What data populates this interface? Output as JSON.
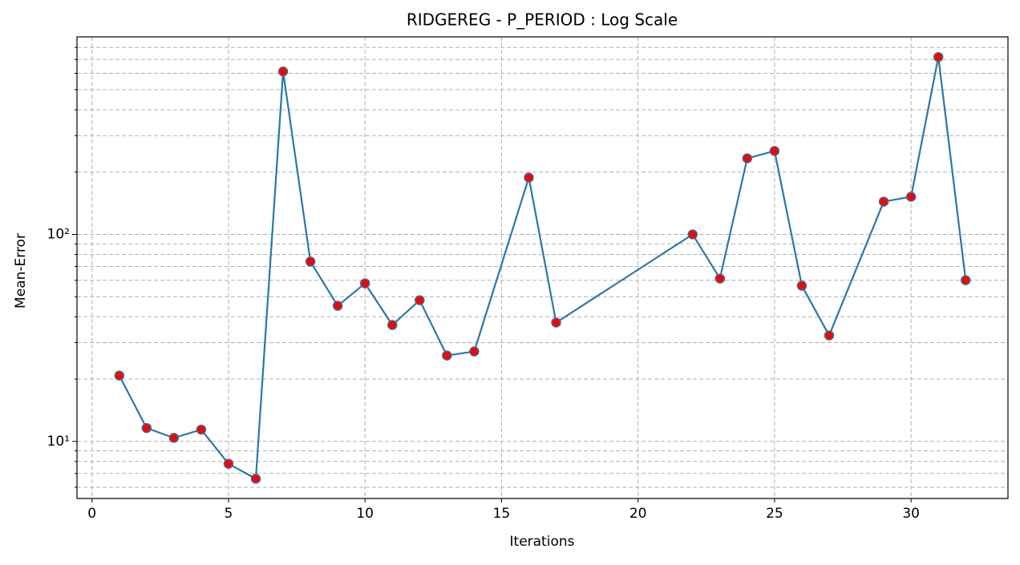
{
  "chart_data": {
    "type": "line",
    "title": "RIDGEREG - P_PERIOD : Log Scale",
    "x_label": "Iterations",
    "y_label": "Mean-Error",
    "x": [
      1,
      2,
      3,
      4,
      5,
      6,
      7,
      8,
      9,
      10,
      11,
      12,
      13,
      14,
      16,
      17,
      22,
      23,
      24,
      25,
      26,
      27,
      29,
      30,
      31,
      32
    ],
    "values": [
      20.8,
      11.6,
      10.4,
      11.4,
      7.8,
      6.6,
      612,
      73.9,
      45.2,
      58.0,
      36.5,
      48.1,
      26.0,
      27.2,
      188,
      37.5,
      100,
      61.2,
      233,
      253,
      56.5,
      32.5,
      144,
      152,
      719,
      60.1
    ],
    "color": "#2a77a8",
    "marker_color": "#ff0000",
    "marker_edge": "#3a6f9a",
    "xlim": [
      -0.55,
      33.55
    ],
    "xticks": [
      0,
      5,
      10,
      15,
      20,
      25,
      30
    ],
    "ylim": [
      5.3,
      900
    ],
    "y_log": true,
    "yticks": [
      {
        "value": 10,
        "label": "10¹"
      },
      {
        "value": 100,
        "label": "10²"
      }
    ],
    "yminorticks": [
      6,
      7,
      8,
      9,
      20,
      30,
      40,
      50,
      60,
      70,
      80,
      90,
      200,
      300,
      400,
      500,
      600,
      700,
      800
    ],
    "grid": true
  }
}
